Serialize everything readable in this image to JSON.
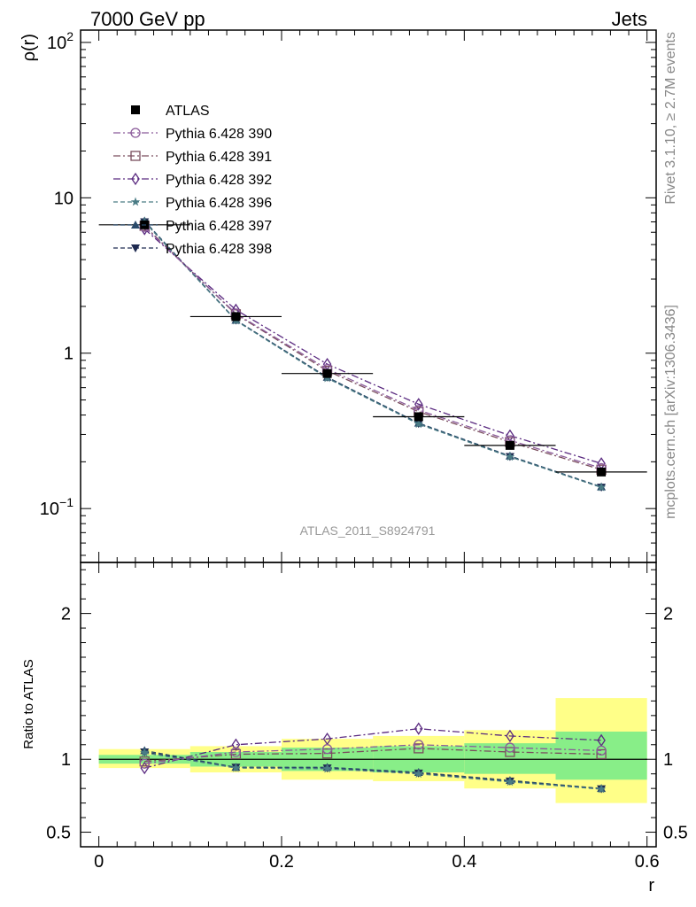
{
  "header": {
    "left": "7000 GeV pp",
    "right": "Jets"
  },
  "side_labels": {
    "rivet": "Rivet 3.1.10, ≥ 2.7M events",
    "mcplots": "mcplots.cern.ch [arXiv:1306.3436]"
  },
  "analysis_label": "ATLAS_2011_S8924791",
  "chart_data": [
    {
      "type": "scatter",
      "panel": "main",
      "ylabel": "ρ(r)",
      "yscale": "log",
      "ylim": [
        0.045,
        120
      ],
      "xlim": [
        -0.02,
        0.61
      ],
      "yticks": [
        {
          "value": 0.1,
          "base": "10",
          "exp": "−1"
        },
        {
          "value": 1,
          "label": "1"
        },
        {
          "value": 10,
          "label": "10"
        },
        {
          "value": 100,
          "base": "10",
          "exp": "2"
        }
      ],
      "legend_position": "top-left",
      "x": [
        0.05,
        0.15,
        0.25,
        0.35,
        0.45,
        0.55
      ],
      "series": [
        {
          "name": "ATLAS",
          "marker": "square-filled",
          "color": "#000000",
          "values": [
            6.7,
            1.72,
            0.74,
            0.39,
            0.255,
            0.172
          ]
        },
        {
          "name": "Pythia 6.428 390",
          "marker": "circle",
          "color": "#8a5a9a",
          "dash": "dashdot",
          "values": [
            6.5,
            1.8,
            0.79,
            0.43,
            0.275,
            0.182
          ]
        },
        {
          "name": "Pythia 6.428 391",
          "marker": "square",
          "color": "#7a4e5e",
          "dash": "dashdot",
          "values": [
            6.6,
            1.78,
            0.77,
            0.42,
            0.268,
            0.178
          ]
        },
        {
          "name": "Pythia 6.428 392",
          "marker": "diamond",
          "color": "#5a2a80",
          "dash": "dashdot",
          "values": [
            6.3,
            1.9,
            0.85,
            0.47,
            0.295,
            0.195
          ]
        },
        {
          "name": "Pythia 6.428 396",
          "marker": "star",
          "color": "#4a7c85",
          "dash": "dashed",
          "values": [
            7.0,
            1.62,
            0.69,
            0.35,
            0.215,
            0.137
          ]
        },
        {
          "name": "Pythia 6.428 397",
          "marker": "triangle-up",
          "color": "#2a4a6a",
          "dash": "dashed",
          "values": [
            7.1,
            1.63,
            0.7,
            0.355,
            0.218,
            0.138
          ]
        },
        {
          "name": "Pythia 6.428 398",
          "marker": "triangle-down",
          "color": "#1e2a50",
          "dash": "dashed",
          "values": [
            7.0,
            1.63,
            0.7,
            0.352,
            0.216,
            0.137
          ]
        }
      ]
    },
    {
      "type": "scatter",
      "panel": "ratio",
      "ylabel": "Ratio to ATLAS",
      "xlabel": "r",
      "ylim": [
        0.4,
        2.35
      ],
      "xlim": [
        -0.02,
        0.61
      ],
      "xticks": [
        0,
        0.2,
        0.4,
        0.6
      ],
      "yticks": [
        0.5,
        1,
        2
      ],
      "x": [
        0.05,
        0.15,
        0.25,
        0.35,
        0.45,
        0.55
      ],
      "bins": [
        [
          0.0,
          0.1
        ],
        [
          0.1,
          0.2
        ],
        [
          0.2,
          0.3
        ],
        [
          0.3,
          0.4
        ],
        [
          0.4,
          0.5
        ],
        [
          0.5,
          0.6
        ]
      ],
      "band_stat": [
        [
          0.97,
          1.03
        ],
        [
          0.95,
          1.05
        ],
        [
          0.92,
          1.08
        ],
        [
          0.91,
          1.09
        ],
        [
          0.9,
          1.11
        ],
        [
          0.86,
          1.19
        ]
      ],
      "band_total": [
        [
          0.94,
          1.07
        ],
        [
          0.91,
          1.09
        ],
        [
          0.86,
          1.14
        ],
        [
          0.85,
          1.16
        ],
        [
          0.8,
          1.2
        ],
        [
          0.7,
          1.42
        ]
      ],
      "series": [
        {
          "name": "Pythia 6.428 390",
          "values": [
            0.97,
            1.05,
            1.07,
            1.1,
            1.08,
            1.06
          ]
        },
        {
          "name": "Pythia 6.428 391",
          "values": [
            0.985,
            1.035,
            1.04,
            1.075,
            1.05,
            1.035
          ]
        },
        {
          "name": "Pythia 6.428 392",
          "values": [
            0.94,
            1.1,
            1.14,
            1.21,
            1.16,
            1.13
          ]
        },
        {
          "name": "Pythia 6.428 396",
          "values": [
            1.045,
            0.94,
            0.935,
            0.9,
            0.845,
            0.795
          ]
        },
        {
          "name": "Pythia 6.428 397",
          "values": [
            1.06,
            0.945,
            0.945,
            0.91,
            0.855,
            0.8
          ]
        },
        {
          "name": "Pythia 6.428 398",
          "values": [
            1.05,
            0.945,
            0.94,
            0.905,
            0.85,
            0.797
          ]
        }
      ]
    }
  ]
}
